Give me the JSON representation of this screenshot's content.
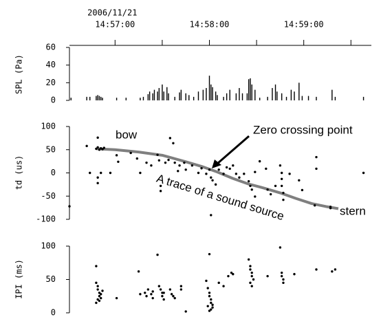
{
  "chart_data": [
    {
      "type": "bar",
      "ylabel": "SPL (Pa)",
      "date_label": "2006/11/21",
      "color": "#000000",
      "xlim": [
        53791,
        53983
      ],
      "xticks": [
        {
          "value": 53820,
          "label": "14:57:00"
        },
        {
          "value": 53880,
          "label": "14:58:00"
        },
        {
          "value": 53940,
          "label": "14:59:00"
        }
      ],
      "xminor": [
        53850,
        53910,
        53970
      ],
      "ylim": [
        0,
        60
      ],
      "yticks": [
        0,
        20,
        40,
        60
      ],
      "x": [
        53792,
        53802,
        53804,
        53808,
        53809,
        53810,
        53811,
        53812,
        53821,
        53827,
        53836,
        53838,
        53841,
        53842,
        53844,
        53845,
        53847,
        53848,
        53850,
        53851,
        53853,
        53854,
        53858,
        53861,
        53862,
        53865,
        53867,
        53870,
        53873,
        53876,
        53878,
        53880,
        53881,
        53882,
        53884,
        53885,
        53889,
        53891,
        53893,
        53897,
        53899,
        53901,
        53904,
        53905,
        53906,
        53907,
        53909,
        53912,
        53917,
        53920,
        53922,
        53923,
        53926,
        53929,
        53932,
        53934,
        53937,
        53939,
        53943,
        53948,
        53958,
        53960,
        53978
      ],
      "values": [
        3,
        4,
        4,
        5,
        6,
        5,
        4,
        3,
        3,
        3,
        3,
        4,
        7,
        10,
        8,
        12,
        10,
        14,
        18,
        10,
        15,
        8,
        4,
        9,
        12,
        8,
        6,
        4,
        10,
        12,
        14,
        28,
        18,
        15,
        10,
        6,
        4,
        8,
        12,
        8,
        14,
        8,
        8,
        24,
        25,
        18,
        12,
        3,
        4,
        14,
        18,
        10,
        8,
        4,
        12,
        10,
        20,
        5,
        5,
        4,
        12,
        4,
        4
      ]
    },
    {
      "type": "scatter",
      "ylabel": "td (us)",
      "color": "#000000",
      "xlim": [
        53791,
        53983
      ],
      "ylim": [
        -100,
        100
      ],
      "yticks": [
        -100,
        -50,
        0,
        50,
        100
      ],
      "x": [
        53791,
        53802,
        53804,
        53808,
        53809,
        53810,
        53811,
        53812,
        53813,
        53809,
        53809,
        53809,
        53811,
        53817,
        53821,
        53822,
        53830,
        53834,
        53836,
        53840,
        53843,
        53847,
        53848,
        53849,
        53849,
        53852,
        53854,
        53855,
        53857,
        53858,
        53860,
        53861,
        53864,
        53865,
        53869,
        53873,
        53875,
        53878,
        53880,
        53881,
        53881,
        53882,
        53884,
        53886,
        53889,
        53891,
        53893,
        53895,
        53897,
        53899,
        53902,
        53905,
        53906,
        53907,
        53909,
        53909,
        53912,
        53916,
        53917,
        53919,
        53922,
        53925,
        53926,
        53926,
        53926,
        53927,
        53927,
        53931,
        53937,
        53939,
        53947,
        53948,
        53948,
        53957,
        53957,
        53978
      ],
      "values": [
        -72,
        58,
        0,
        52,
        55,
        50,
        53,
        51,
        54,
        76,
        -10,
        -22,
        0,
        0,
        38,
        24,
        43,
        31,
        0,
        22,
        16,
        39,
        27,
        -28,
        -39,
        22,
        28,
        75,
        64,
        22,
        4,
        16,
        22,
        7,
        16,
        0,
        10,
        -2,
        7,
        -10,
        -91,
        -16,
        -25,
        7,
        -2,
        12,
        9,
        16,
        -2,
        -10,
        -2,
        -18,
        -28,
        -36,
        -51,
        2,
        25,
        9,
        -36,
        -46,
        -28,
        16,
        0,
        -13,
        -28,
        -43,
        -58,
        -2,
        -16,
        -37,
        -70,
        34,
        9,
        -73,
        -76,
        0
      ],
      "trace": {
        "color": "#7f7f7f",
        "x": [
          53808,
          53820,
          53835,
          53850,
          53865,
          53875,
          53885,
          53895,
          53905,
          53915,
          53925,
          53935,
          53945,
          53955,
          53962
        ],
        "values": [
          52,
          50,
          45,
          38,
          24,
          14,
          2,
          -12,
          -24,
          -33,
          -43,
          -55,
          -66,
          -73,
          -77
        ]
      },
      "annotations": [
        "bow",
        "Zero crossing point",
        "A trace of a sound source",
        "stern"
      ]
    },
    {
      "type": "scatter",
      "ylabel": "IPI (ms)",
      "color": "#000000",
      "xlim": [
        53791,
        53983
      ],
      "ylim": [
        0,
        100
      ],
      "yticks": [
        0,
        50,
        100
      ],
      "x": [
        53808,
        53808,
        53809,
        53809,
        53810,
        53810,
        53811,
        53809,
        53810,
        53811,
        53812,
        53808,
        53821,
        53835,
        53836,
        53839,
        53840,
        53841,
        53843,
        53844,
        53844,
        53847,
        53848,
        53849,
        53850,
        53850,
        53851,
        53851,
        53855,
        53856,
        53857,
        53858,
        53862,
        53862,
        53865,
        53878,
        53879,
        53880,
        53880,
        53881,
        53881,
        53882,
        53882,
        53881,
        53880,
        53879,
        53880,
        53886,
        53889,
        53892,
        53894,
        53895,
        53905,
        53906,
        53906,
        53907,
        53907,
        53908,
        53906,
        53907,
        53917,
        53925,
        53926,
        53926,
        53927,
        53927,
        53934,
        53948,
        53958,
        53960
      ],
      "values": [
        70,
        45,
        40,
        35,
        30,
        25,
        22,
        20,
        18,
        28,
        33,
        15,
        22,
        62,
        28,
        30,
        25,
        35,
        28,
        22,
        32,
        87,
        40,
        35,
        30,
        25,
        20,
        30,
        35,
        28,
        25,
        22,
        35,
        40,
        2,
        48,
        37,
        30,
        25,
        20,
        15,
        12,
        8,
        5,
        3,
        10,
        88,
        45,
        40,
        55,
        60,
        58,
        80,
        70,
        65,
        60,
        55,
        50,
        45,
        40,
        55,
        98,
        60,
        55,
        50,
        45,
        58,
        65,
        62,
        65
      ]
    }
  ]
}
